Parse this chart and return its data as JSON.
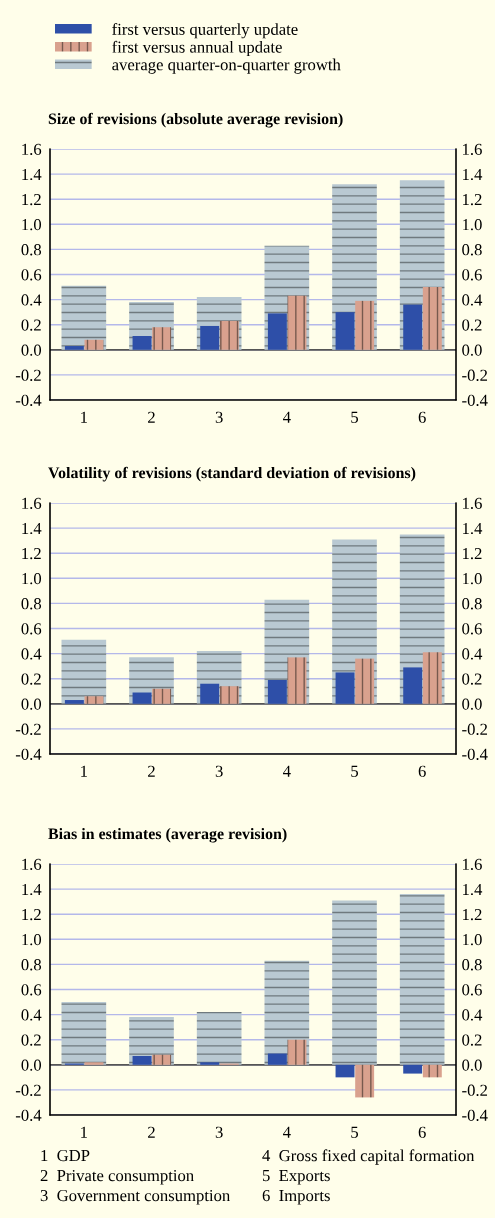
{
  "chart_data": [
    {
      "type": "bar",
      "title": "Size of revisions (absolute average revision)",
      "categories": [
        "1",
        "2",
        "3",
        "4",
        "5",
        "6"
      ],
      "legend": "top",
      "series": [
        {
          "name": "average quarter-on-quarter growth",
          "color": "#b9c9d2",
          "values": [
            0.51,
            0.38,
            0.42,
            0.83,
            1.32,
            1.35
          ]
        },
        {
          "name": "first versus quarterly update",
          "color": "#2e4fa8",
          "values": [
            0.03,
            0.11,
            0.19,
            0.29,
            0.3,
            0.36
          ]
        },
        {
          "name": "first versus annual update",
          "color": "#d9a18e",
          "values": [
            0.08,
            0.18,
            0.23,
            0.43,
            0.39,
            0.5
          ]
        }
      ],
      "ylim": [
        -0.4,
        1.6
      ],
      "yticks": [
        {
          "value": -0.4,
          "label": "-0.4"
        },
        {
          "value": -0.2,
          "label": "-0.2"
        },
        {
          "value": 0,
          "label": "0.0"
        },
        0.2,
        0.4,
        0.6,
        0.8,
        {
          "value": 1,
          "label": "1.0"
        },
        1.2,
        1.4,
        1.6
      ],
      "y2lim": [
        -0.4,
        1.6
      ],
      "y2ticks": [
        {
          "value": -0.4,
          "label": "-0.4"
        },
        {
          "value": -0.2,
          "label": "-0.2"
        },
        {
          "value": 0,
          "label": "0.0"
        },
        0.2,
        0.4,
        0.6,
        0.8,
        {
          "value": 1,
          "label": "1.0"
        },
        1.2,
        1.4,
        1.6
      ],
      "grid": true
    },
    {
      "type": "bar",
      "title": "Volatility of revisions (standard deviation of revisions)",
      "categories": [
        "1",
        "2",
        "3",
        "4",
        "5",
        "6"
      ],
      "series": [
        {
          "color": "#b9c9d2",
          "values": [
            0.51,
            0.37,
            0.42,
            0.83,
            1.31,
            1.35
          ]
        },
        {
          "color": "#2e4fa8",
          "values": [
            0.03,
            0.09,
            0.16,
            0.19,
            0.25,
            0.29
          ]
        },
        {
          "color": "#d9a18e",
          "values": [
            0.06,
            0.12,
            0.14,
            0.37,
            0.36,
            0.41
          ]
        }
      ],
      "ylim": [
        -0.4,
        1.6
      ],
      "yticks": [
        {
          "value": -0.4,
          "label": "-0.4"
        },
        {
          "value": -0.2,
          "label": "-0.2"
        },
        {
          "value": 0,
          "label": "0.0"
        },
        0.2,
        0.4,
        0.6,
        0.8,
        {
          "value": 1,
          "label": "1.0"
        },
        1.2,
        1.4,
        1.6
      ],
      "y2lim": [
        -0.4,
        1.6
      ],
      "y2ticks": [
        {
          "value": -0.4,
          "label": "-0.4"
        },
        {
          "value": -0.2,
          "label": "-0.2"
        },
        {
          "value": 0,
          "label": "0.0"
        },
        0.2,
        0.4,
        0.6,
        0.8,
        {
          "value": 1,
          "label": "1.0"
        },
        1.2,
        1.4,
        1.6
      ],
      "grid": true
    },
    {
      "type": "bar",
      "title": "Bias in estimates (average revision)",
      "categories": [
        "1",
        "2",
        "3",
        "4",
        "5",
        "6"
      ],
      "series": [
        {
          "color": "#b9c9d2",
          "values": [
            0.5,
            0.38,
            0.42,
            0.83,
            1.31,
            1.36
          ]
        },
        {
          "color": "#2e4fa8",
          "values": [
            0.01,
            0.07,
            0.02,
            0.09,
            -0.1,
            -0.07
          ]
        },
        {
          "color": "#d9a18e",
          "values": [
            0.02,
            0.08,
            0.01,
            0.2,
            -0.26,
            -0.1
          ]
        }
      ],
      "ylim": [
        -0.4,
        1.6
      ],
      "yticks": [
        {
          "value": -0.4,
          "label": "-0.4"
        },
        {
          "value": -0.2,
          "label": "-0.2"
        },
        {
          "value": 0,
          "label": "0.0"
        },
        0.2,
        0.4,
        0.6,
        0.8,
        {
          "value": 1,
          "label": "1.0"
        },
        1.2,
        1.4,
        1.6
      ],
      "y2lim": [
        -0.4,
        1.6
      ],
      "y2ticks": [
        {
          "value": -0.4,
          "label": "-0.4"
        },
        {
          "value": -0.2,
          "label": "-0.2"
        },
        {
          "value": 0,
          "label": "0.0"
        },
        0.2,
        0.4,
        0.6,
        0.8,
        {
          "value": 1,
          "label": "1.0"
        },
        1.2,
        1.4,
        1.6
      ],
      "grid": true,
      "annotations": [
        "1  GDP",
        "2  Private consumption",
        "3  Government consumption",
        "4  Gross fixed capital formation",
        "5  Exports",
        "6  Imports"
      ]
    }
  ]
}
